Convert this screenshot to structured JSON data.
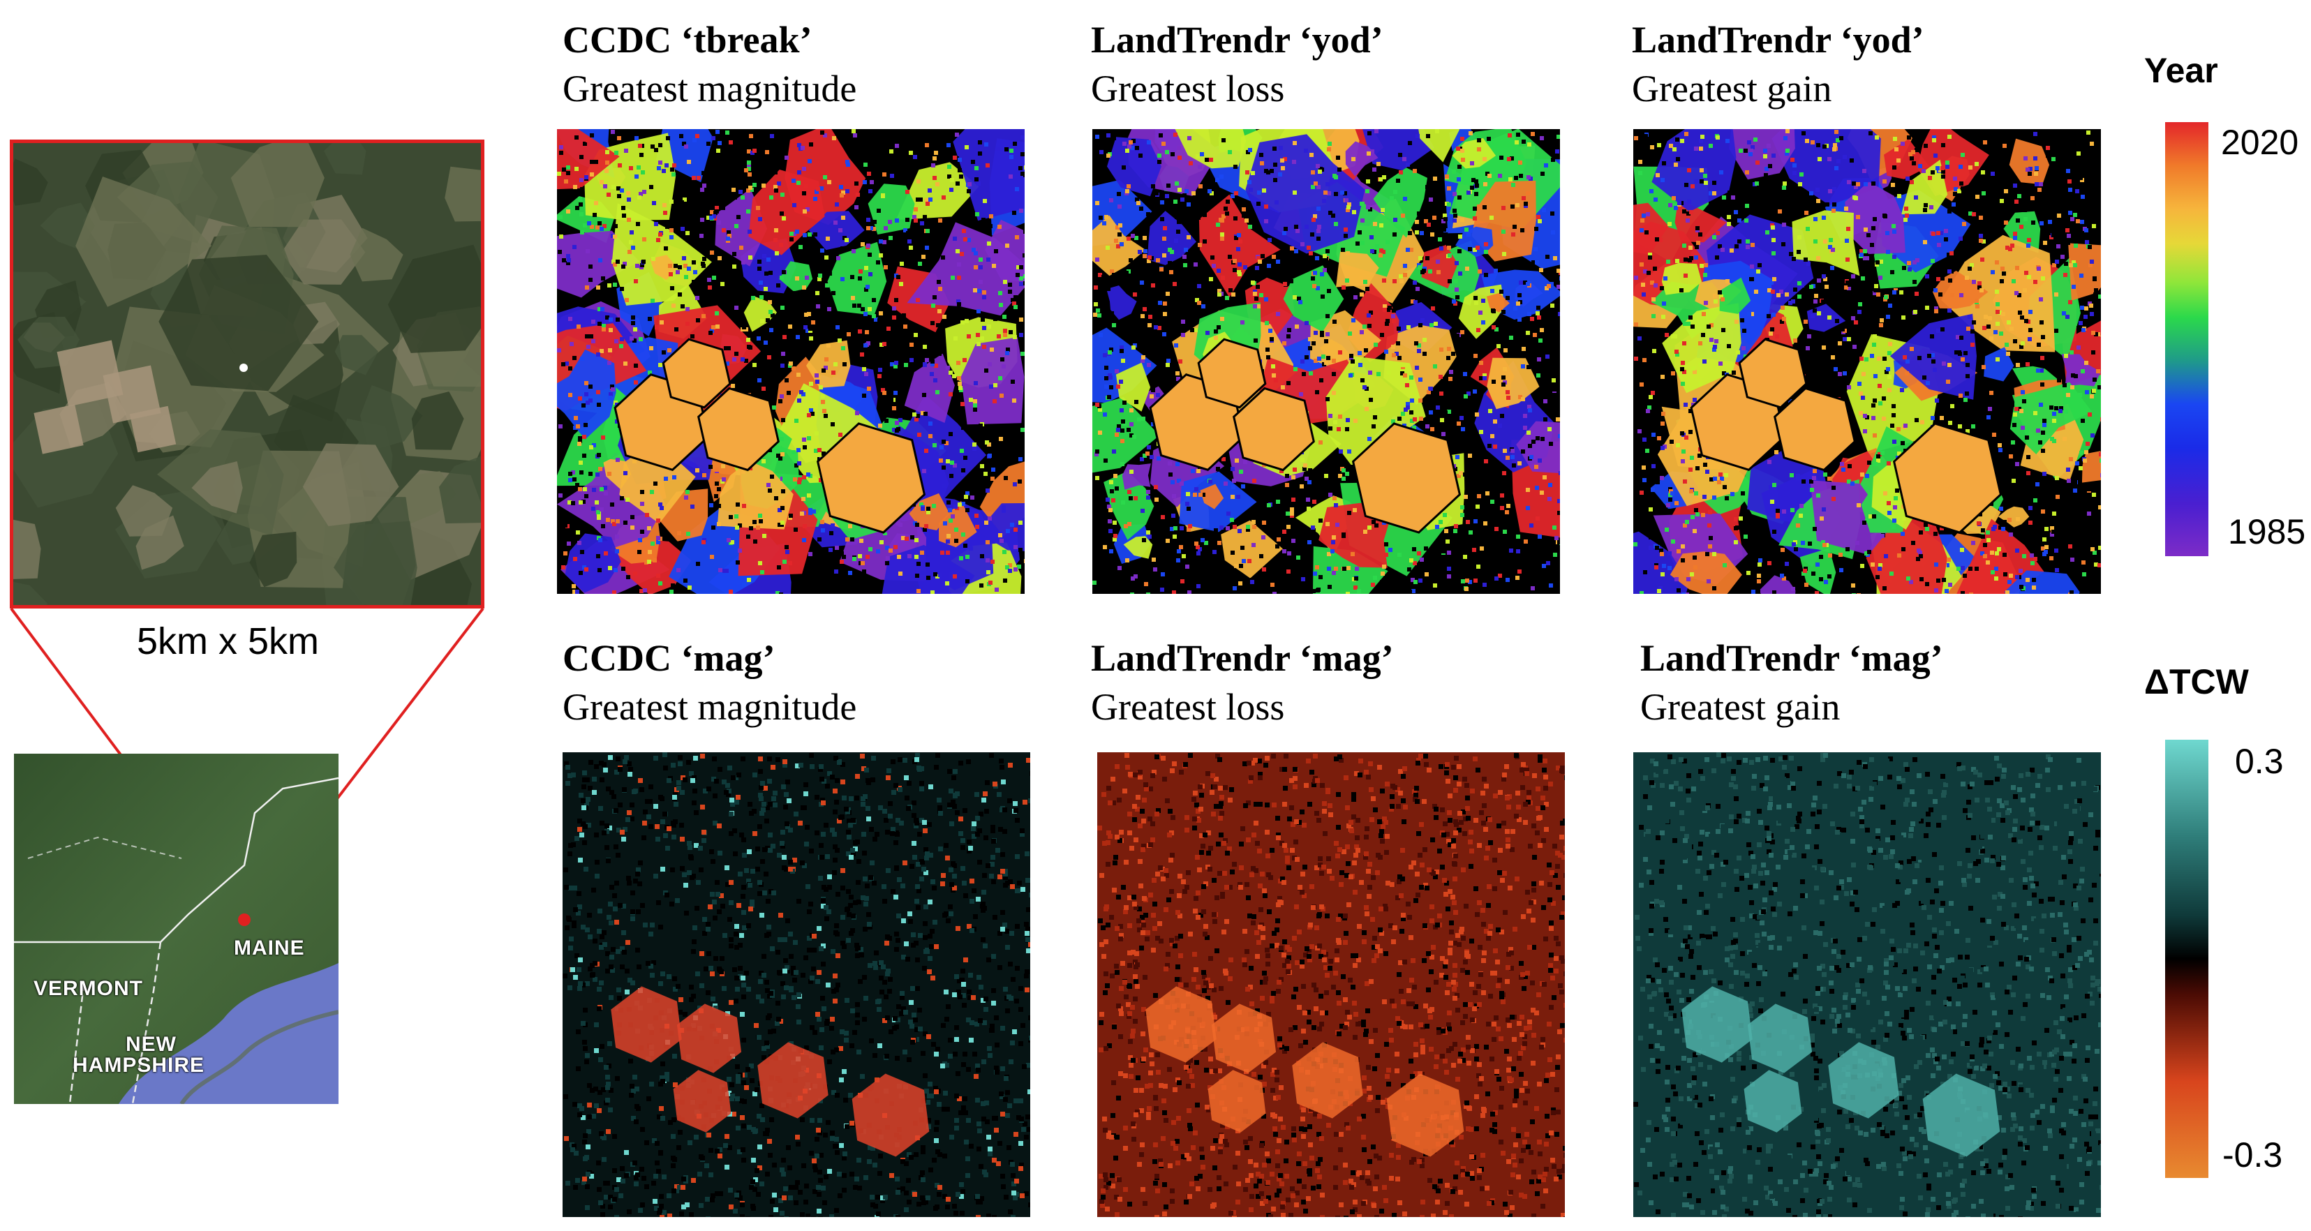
{
  "inset": {
    "scale_label": "5km x 5km",
    "state_labels": {
      "maine": "MAINE",
      "vermont": "VERMONT",
      "new": "NEW",
      "hampshire": "HAMPSHIRE"
    }
  },
  "panels": [
    {
      "title": "CCDC ‘tbreak’",
      "subtitle": "Greatest magnitude",
      "scheme": "year"
    },
    {
      "title": "LandTrendr ‘yod’",
      "subtitle": "Greatest loss",
      "scheme": "year"
    },
    {
      "title": "LandTrendr ‘yod’",
      "subtitle": "Greatest gain",
      "scheme": "year"
    },
    {
      "title": "CCDC ‘mag’",
      "subtitle": "Greatest magnitude",
      "scheme": "mag-mixed"
    },
    {
      "title": "LandTrendr ‘mag’",
      "subtitle": "Greatest loss",
      "scheme": "mag-loss"
    },
    {
      "title": "LandTrendr ‘mag’",
      "subtitle": "Greatest gain",
      "scheme": "mag-gain"
    }
  ],
  "legend_year": {
    "title": "Year",
    "max_label": "2020",
    "min_label": "1985"
  },
  "legend_tcw": {
    "title": "ΔTCW",
    "max_label": "0.3",
    "min_label": "-0.3"
  },
  "colors": {
    "inset_border": "#e02020",
    "year_ramp": [
      "#7d2cc7",
      "#2d1fd6",
      "#1a46f2",
      "#2bd94b",
      "#c8ef2c",
      "#f6b53c",
      "#f07a2a",
      "#e3262a"
    ],
    "tcw_ramp": [
      "#e88a30",
      "#d8451d",
      "#4a0b04",
      "#000000",
      "#0f3a3a",
      "#3f9e98",
      "#6fd8cf"
    ],
    "satellite": "#3c4a32",
    "ocean": "#6a78c8"
  }
}
